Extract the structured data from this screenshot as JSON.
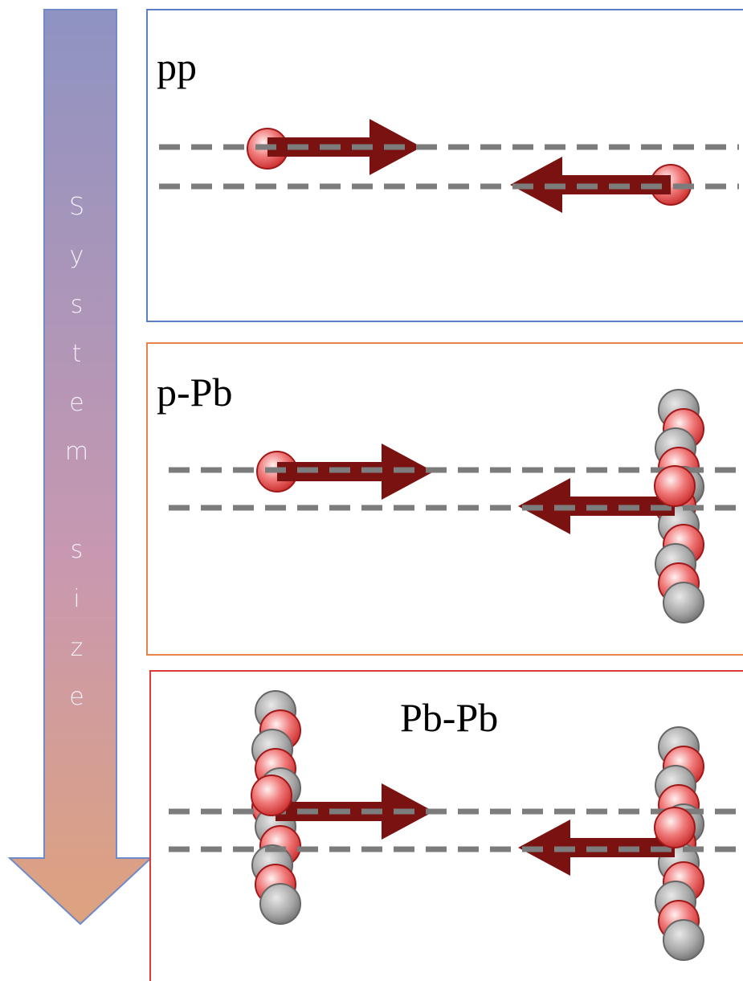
{
  "axis_label": "System size",
  "panels": [
    {
      "label": "pp"
    },
    {
      "label": "p-Pb"
    },
    {
      "label": "Pb-Pb"
    }
  ]
}
